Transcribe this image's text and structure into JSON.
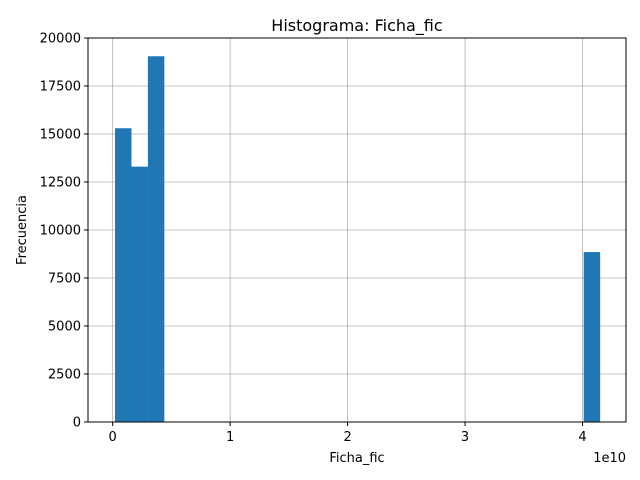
{
  "chart_data": {
    "type": "bar",
    "title": "Histograma: Ficha_fic",
    "xlabel": "Ficha_fic",
    "ylabel": "Frecuencia",
    "x_offset_label": "1e10",
    "xlim": [
      -0.21,
      4.37
    ],
    "ylim": [
      0,
      20000
    ],
    "xticks": [
      0,
      1,
      2,
      3,
      4
    ],
    "xtick_labels": [
      "0",
      "1",
      "2",
      "3",
      "4"
    ],
    "yticks": [
      0,
      2500,
      5000,
      7500,
      10000,
      12500,
      15000,
      17500,
      20000
    ],
    "ytick_labels": [
      "0",
      "2500",
      "5000",
      "7500",
      "10000",
      "12500",
      "15000",
      "17500",
      "20000"
    ],
    "grid": true,
    "bar_color": "#1f77b4",
    "bins": [
      {
        "x0": 0.02,
        "x1": 0.16,
        "value": 15300
      },
      {
        "x0": 0.16,
        "x1": 0.3,
        "value": 13300
      },
      {
        "x0": 0.3,
        "x1": 0.44,
        "value": 19050
      },
      {
        "x0": 4.01,
        "x1": 4.15,
        "value": 8850
      }
    ]
  }
}
